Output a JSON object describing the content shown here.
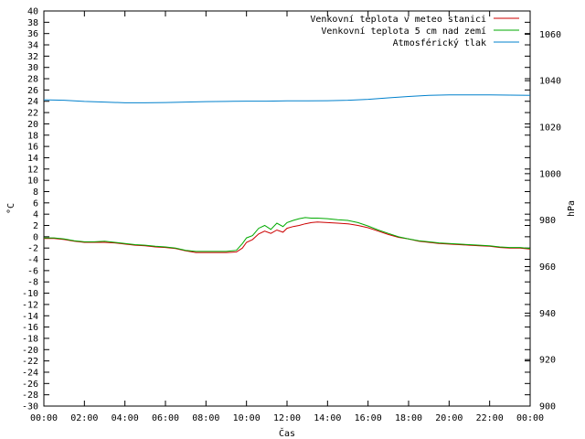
{
  "chart_data": {
    "type": "line",
    "xlabel": "Čas",
    "ylabel": "°C",
    "y2label": "hPa",
    "x_ticks": [
      "00:00",
      "02:00",
      "04:00",
      "06:00",
      "08:00",
      "10:00",
      "12:00",
      "14:00",
      "16:00",
      "18:00",
      "20:00",
      "22:00",
      "00:00"
    ],
    "xlim_hours": [
      0,
      24
    ],
    "ylim": [
      -30,
      40
    ],
    "y_ticks": [
      -30,
      -28,
      -26,
      -24,
      -22,
      -20,
      -18,
      -16,
      -14,
      -12,
      -10,
      -8,
      -6,
      -4,
      -2,
      0,
      2,
      4,
      6,
      8,
      10,
      12,
      14,
      16,
      18,
      20,
      22,
      24,
      26,
      28,
      30,
      32,
      34,
      36,
      38,
      40
    ],
    "y2lim": [
      900,
      1070
    ],
    "y2_ticks": [
      900,
      920,
      940,
      960,
      980,
      1000,
      1020,
      1040,
      1060
    ],
    "legend_position": "top-right",
    "grid": false,
    "series": [
      {
        "name": "Venkovní teplota v meteo stanici",
        "axis": "left",
        "color": "#cc0000",
        "x": [
          0,
          0.5,
          1,
          1.5,
          2,
          2.5,
          3,
          3.5,
          4,
          4.5,
          5,
          5.5,
          6,
          6.5,
          7,
          7.5,
          8,
          8.5,
          9,
          9.5,
          9.8,
          10,
          10.3,
          10.6,
          10.9,
          11.2,
          11.5,
          11.8,
          12,
          12.3,
          12.6,
          12.9,
          13.2,
          13.5,
          14,
          14.5,
          15,
          15.5,
          16,
          16.5,
          17,
          17.5,
          18,
          18.5,
          19,
          19.5,
          20,
          20.5,
          21,
          21.5,
          22,
          22.5,
          23,
          23.5,
          24
        ],
        "y": [
          -0.3,
          -0.3,
          -0.5,
          -0.8,
          -1.0,
          -1.0,
          -1.0,
          -1.1,
          -1.3,
          -1.5,
          -1.6,
          -1.8,
          -1.9,
          -2.1,
          -2.5,
          -2.8,
          -2.8,
          -2.8,
          -2.8,
          -2.7,
          -2.0,
          -1.0,
          -0.5,
          0.5,
          1.0,
          0.6,
          1.2,
          0.8,
          1.5,
          1.8,
          2.0,
          2.3,
          2.5,
          2.6,
          2.5,
          2.4,
          2.3,
          2.0,
          1.6,
          1.0,
          0.4,
          -0.1,
          -0.4,
          -0.8,
          -1.0,
          -1.2,
          -1.3,
          -1.4,
          -1.5,
          -1.6,
          -1.7,
          -1.9,
          -2.0,
          -2.0,
          -2.2
        ]
      },
      {
        "name": "Venkovní teplota 5 cm nad zemí",
        "axis": "left",
        "color": "#00aa00",
        "x": [
          0,
          0.5,
          1,
          1.5,
          2,
          2.5,
          3,
          3.5,
          4,
          4.5,
          5,
          5.5,
          6,
          6.5,
          7,
          7.5,
          8,
          8.5,
          9,
          9.5,
          9.8,
          10,
          10.3,
          10.6,
          10.9,
          11.2,
          11.5,
          11.8,
          12,
          12.3,
          12.6,
          12.9,
          13.2,
          13.5,
          14,
          14.5,
          15,
          15.5,
          16,
          16.5,
          17,
          17.5,
          18,
          18.5,
          19,
          19.5,
          20,
          20.5,
          21,
          21.5,
          22,
          22.5,
          23,
          23.5,
          24
        ],
        "y": [
          -0.2,
          -0.2,
          -0.4,
          -0.7,
          -0.9,
          -0.9,
          -0.8,
          -1.0,
          -1.2,
          -1.4,
          -1.5,
          -1.7,
          -1.8,
          -2.0,
          -2.4,
          -2.6,
          -2.6,
          -2.6,
          -2.6,
          -2.4,
          -1.2,
          -0.2,
          0.2,
          1.5,
          2.0,
          1.3,
          2.4,
          1.8,
          2.5,
          2.9,
          3.2,
          3.4,
          3.3,
          3.3,
          3.2,
          3.0,
          2.9,
          2.5,
          1.9,
          1.2,
          0.6,
          0.0,
          -0.4,
          -0.7,
          -0.9,
          -1.1,
          -1.2,
          -1.3,
          -1.4,
          -1.5,
          -1.6,
          -1.8,
          -1.9,
          -1.9,
          -2.1
        ]
      },
      {
        "name": "Atmosférický tlak",
        "axis": "right",
        "color": "#0080cc",
        "x": [
          0,
          1,
          2,
          3,
          4,
          5,
          6,
          7,
          8,
          9,
          10,
          11,
          12,
          13,
          14,
          15,
          16,
          17,
          18,
          19,
          20,
          21,
          22,
          23,
          24
        ],
        "y": [
          1031.8,
          1031.6,
          1031.1,
          1030.8,
          1030.5,
          1030.5,
          1030.6,
          1030.8,
          1031.0,
          1031.1,
          1031.2,
          1031.2,
          1031.3,
          1031.3,
          1031.4,
          1031.6,
          1032.0,
          1032.6,
          1033.2,
          1033.7,
          1033.9,
          1033.9,
          1033.9,
          1033.8,
          1033.7
        ]
      }
    ]
  }
}
